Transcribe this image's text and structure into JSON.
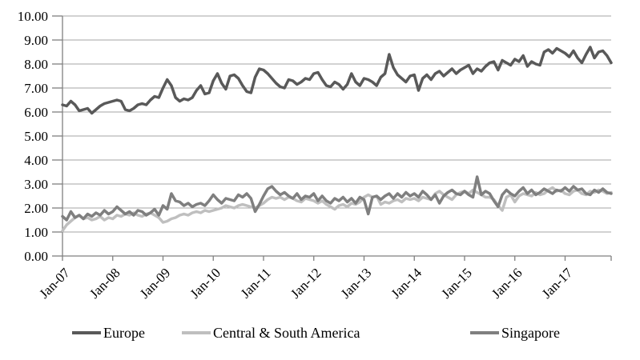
{
  "figure": {
    "background": "#ffffff"
  },
  "chart_data": {
    "type": "line",
    "title": "",
    "xlabel": "",
    "ylabel": "",
    "ylim": [
      0,
      10
    ],
    "y_tick_interval": 1,
    "y_tick_labels": [
      "0.00",
      "1.00",
      "2.00",
      "3.00",
      "4.00",
      "5.00",
      "6.00",
      "7.00",
      "8.00",
      "9.00",
      "10.00"
    ],
    "x_tick_labels": [
      "Jan-07",
      "Jan-08",
      "Jan-09",
      "Jan-10",
      "Jan-11",
      "Jan-12",
      "Jan-13",
      "Jan-14",
      "Jan-15",
      "Jan-16",
      "Jan-17"
    ],
    "x_unit": "monthly points from Jan-07 to Dec-17",
    "grid": "horizontal",
    "legend_position": "bottom",
    "axis_color": "#808080",
    "gridline_color": "#a6a6a6",
    "text_color": "#000000",
    "line_width": 3.5,
    "series": [
      {
        "name": "Europe",
        "color": "#595959",
        "values": [
          6.3,
          6.25,
          6.45,
          6.3,
          6.05,
          6.1,
          6.15,
          5.95,
          6.1,
          6.25,
          6.35,
          6.4,
          6.45,
          6.5,
          6.45,
          6.1,
          6.05,
          6.15,
          6.3,
          6.35,
          6.3,
          6.5,
          6.65,
          6.6,
          7.0,
          7.35,
          7.1,
          6.6,
          6.45,
          6.55,
          6.5,
          6.6,
          6.9,
          7.1,
          6.75,
          6.8,
          7.3,
          7.6,
          7.2,
          6.95,
          7.5,
          7.55,
          7.4,
          7.1,
          6.85,
          6.8,
          7.45,
          7.8,
          7.75,
          7.6,
          7.4,
          7.2,
          7.05,
          7.0,
          7.35,
          7.3,
          7.15,
          7.25,
          7.4,
          7.35,
          7.6,
          7.65,
          7.35,
          7.1,
          7.05,
          7.25,
          7.15,
          6.95,
          7.15,
          7.6,
          7.25,
          7.1,
          7.4,
          7.35,
          7.25,
          7.1,
          7.45,
          7.6,
          8.4,
          7.85,
          7.55,
          7.4,
          7.25,
          7.5,
          7.55,
          6.9,
          7.4,
          7.55,
          7.35,
          7.6,
          7.7,
          7.5,
          7.65,
          7.8,
          7.6,
          7.75,
          7.85,
          7.95,
          7.6,
          7.8,
          7.7,
          7.9,
          8.05,
          8.1,
          7.75,
          8.15,
          8.05,
          7.95,
          8.2,
          8.1,
          8.35,
          7.9,
          8.1,
          8.0,
          7.95,
          8.5,
          8.6,
          8.45,
          8.65,
          8.55,
          8.45,
          8.3,
          8.55,
          8.25,
          8.05,
          8.4,
          8.7,
          8.25,
          8.5,
          8.55,
          8.35,
          8.05
        ]
      },
      {
        "name": "Central & South America",
        "color": "#bfbfbf",
        "values": [
          1.05,
          1.3,
          1.45,
          1.6,
          1.7,
          1.55,
          1.6,
          1.5,
          1.55,
          1.65,
          1.5,
          1.6,
          1.55,
          1.7,
          1.65,
          1.75,
          1.7,
          1.8,
          1.7,
          1.65,
          1.75,
          1.8,
          1.7,
          1.6,
          1.4,
          1.45,
          1.55,
          1.6,
          1.7,
          1.75,
          1.7,
          1.8,
          1.85,
          1.8,
          1.9,
          1.85,
          1.9,
          1.95,
          2.0,
          2.1,
          2.05,
          2.0,
          2.1,
          2.15,
          2.1,
          2.05,
          2.0,
          2.1,
          2.2,
          2.35,
          2.45,
          2.4,
          2.45,
          2.35,
          2.45,
          2.4,
          2.3,
          2.25,
          2.4,
          2.35,
          2.3,
          2.2,
          2.3,
          2.15,
          2.05,
          1.95,
          2.1,
          2.15,
          2.05,
          2.2,
          2.15,
          2.25,
          2.45,
          2.55,
          2.45,
          2.5,
          2.15,
          2.25,
          2.2,
          2.3,
          2.35,
          2.25,
          2.4,
          2.35,
          2.4,
          2.3,
          2.45,
          2.4,
          2.35,
          2.6,
          2.7,
          2.55,
          2.45,
          2.35,
          2.55,
          2.65,
          2.7,
          2.6,
          2.75,
          2.65,
          2.55,
          2.45,
          2.45,
          2.35,
          2.1,
          1.9,
          2.45,
          2.55,
          2.25,
          2.5,
          2.6,
          2.55,
          2.5,
          2.65,
          2.55,
          2.6,
          2.75,
          2.85,
          2.7,
          2.75,
          2.6,
          2.55,
          2.7,
          2.75,
          2.6,
          2.55,
          2.7,
          2.65,
          2.75,
          2.7,
          2.6,
          2.65
        ]
      },
      {
        "name": "Singapore",
        "color": "#7f7f7f",
        "values": [
          1.65,
          1.5,
          1.85,
          1.6,
          1.7,
          1.55,
          1.75,
          1.65,
          1.8,
          1.7,
          1.9,
          1.75,
          1.85,
          2.05,
          1.9,
          1.75,
          1.85,
          1.7,
          1.9,
          1.85,
          1.7,
          1.8,
          1.95,
          1.7,
          2.1,
          1.95,
          2.6,
          2.3,
          2.25,
          2.1,
          2.2,
          2.05,
          2.15,
          2.2,
          2.1,
          2.3,
          2.55,
          2.35,
          2.2,
          2.4,
          2.35,
          2.3,
          2.55,
          2.45,
          2.6,
          2.4,
          1.85,
          2.15,
          2.5,
          2.8,
          2.9,
          2.7,
          2.55,
          2.65,
          2.5,
          2.4,
          2.6,
          2.35,
          2.5,
          2.45,
          2.6,
          2.3,
          2.5,
          2.3,
          2.2,
          2.4,
          2.3,
          2.45,
          2.25,
          2.4,
          2.2,
          2.45,
          2.35,
          1.75,
          2.45,
          2.5,
          2.35,
          2.5,
          2.6,
          2.4,
          2.6,
          2.45,
          2.65,
          2.5,
          2.6,
          2.45,
          2.7,
          2.55,
          2.35,
          2.55,
          2.2,
          2.5,
          2.65,
          2.75,
          2.6,
          2.55,
          2.7,
          2.55,
          2.45,
          3.3,
          2.55,
          2.7,
          2.6,
          2.3,
          2.05,
          2.55,
          2.75,
          2.6,
          2.5,
          2.7,
          2.85,
          2.6,
          2.75,
          2.55,
          2.65,
          2.8,
          2.7,
          2.6,
          2.75,
          2.7,
          2.85,
          2.7,
          2.9,
          2.75,
          2.8,
          2.6,
          2.55,
          2.75,
          2.65,
          2.8,
          2.65,
          2.6
        ]
      }
    ]
  }
}
